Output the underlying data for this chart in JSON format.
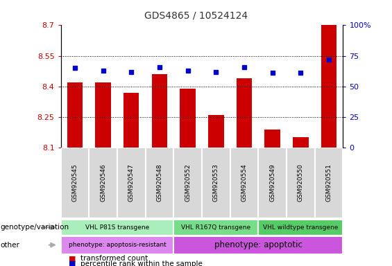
{
  "title": "GDS4865 / 10524124",
  "samples": [
    "GSM920545",
    "GSM920546",
    "GSM920547",
    "GSM920548",
    "GSM920552",
    "GSM920553",
    "GSM920554",
    "GSM920549",
    "GSM920550",
    "GSM920551"
  ],
  "red_values": [
    8.42,
    8.42,
    8.37,
    8.46,
    8.39,
    8.26,
    8.44,
    8.19,
    8.15,
    8.7
  ],
  "blue_values": [
    65,
    63,
    62,
    66,
    63,
    62,
    66,
    61,
    61,
    72
  ],
  "ylim_left": [
    8.1,
    8.7
  ],
  "ylim_right": [
    0,
    100
  ],
  "yticks_left": [
    8.1,
    8.25,
    8.4,
    8.55,
    8.7
  ],
  "yticks_right": [
    0,
    25,
    50,
    75,
    100
  ],
  "ytick_labels_left": [
    "8.1",
    "8.25",
    "8.4",
    "8.55",
    "8.7"
  ],
  "ytick_labels_right": [
    "0",
    "25",
    "50",
    "75",
    "100%"
  ],
  "hlines": [
    8.25,
    8.4,
    8.55
  ],
  "bar_color": "#cc0000",
  "dot_color": "#0000cc",
  "bar_width": 0.55,
  "groups": [
    {
      "label": "VHL P81S transgene",
      "start": 0,
      "end": 4,
      "color": "#aaeebb"
    },
    {
      "label": "VHL R167Q transgene",
      "start": 4,
      "end": 7,
      "color": "#77dd88"
    },
    {
      "label": "VHL wildtype transgene",
      "start": 7,
      "end": 10,
      "color": "#55cc66"
    }
  ],
  "phenotypes": [
    {
      "label": "phenotype: apoptosis-resistant",
      "start": 0,
      "end": 4,
      "color": "#dd88ee"
    },
    {
      "label": "phenotype: apoptotic",
      "start": 4,
      "end": 10,
      "color": "#cc55dd"
    }
  ],
  "row_labels": [
    "genotype/variation",
    "other"
  ],
  "legend_items": [
    {
      "color": "#cc0000",
      "label": "transformed count"
    },
    {
      "color": "#0000cc",
      "label": "percentile rank within the sample"
    }
  ],
  "background_color": "#ffffff",
  "plot_bg_color": "#ffffff",
  "tick_label_color_left": "#cc0000",
  "tick_label_color_right": "#0000cc",
  "title_color": "#333333",
  "sample_bg_color": "#d8d8d8",
  "arrow_color": "#aaaaaa"
}
